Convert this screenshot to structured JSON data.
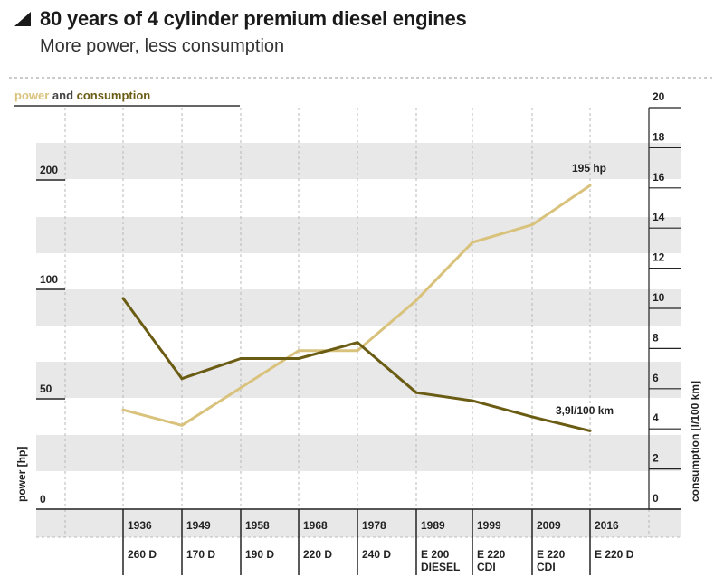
{
  "header": {
    "title": "80 years of 4 cylinder premium diesel engines",
    "subtitle": "More power, less consumption"
  },
  "legend": {
    "power_word": "power",
    "and_word": " and ",
    "consumption_word": "consumption"
  },
  "colors": {
    "power": "#d9c27c",
    "consumption": "#6b5c14",
    "band": "#e8e8e8",
    "text": "#222222"
  },
  "chart_data": {
    "type": "line",
    "categories": [
      "1936",
      "1949",
      "1958",
      "1968",
      "1978",
      "1989",
      "1999",
      "2009",
      "2016"
    ],
    "models": [
      "260 D",
      "170 D",
      "190 D",
      "220 D",
      "240 D",
      "E 200 DIESEL",
      "E 220 CDI",
      "E 220 CDI",
      "E 220 D"
    ],
    "series": [
      {
        "name": "power",
        "axis": "left",
        "values": [
          45,
          38,
          55,
          72,
          72,
          95,
          143,
          159,
          195
        ]
      },
      {
        "name": "consumption",
        "axis": "right",
        "values": [
          10.5,
          6.5,
          7.5,
          7.5,
          8.3,
          5.8,
          5.4,
          4.6,
          3.9
        ]
      }
    ],
    "left_axis": {
      "label": "power [hp]",
      "ticks": [
        "0",
        "50",
        "100",
        "200"
      ]
    },
    "right_axis": {
      "label": "consumption [l/100 km]",
      "ticks": [
        "0",
        "2",
        "4",
        "6",
        "8",
        "10",
        "12",
        "14",
        "16",
        "18",
        "20"
      ],
      "range": [
        0,
        20
      ]
    },
    "annotations": {
      "power_end": "195 hp",
      "consumption_end": "3,9l/100 km"
    }
  }
}
